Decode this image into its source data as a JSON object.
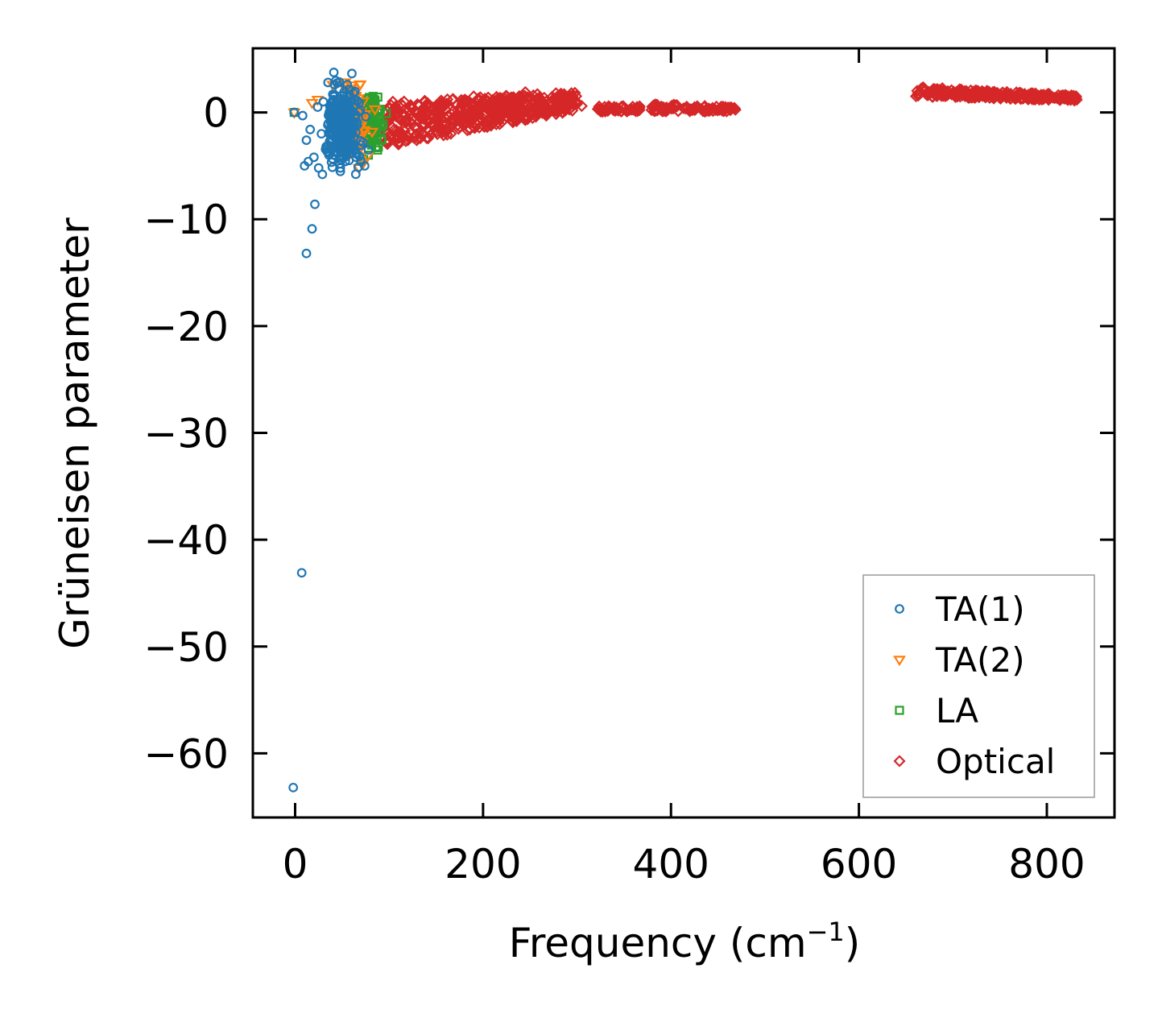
{
  "chart_data": {
    "type": "scatter",
    "title": "",
    "xlabel": "Frequency (cm",
    "xlabel_sup": "−1",
    "xlabel_close": ")",
    "ylabel": "Grüneisen parameter",
    "xlim": [
      -45,
      872
    ],
    "ylim": [
      -66,
      6
    ],
    "xticks": [
      0,
      200,
      400,
      600,
      800
    ],
    "xtick_labels": [
      "0",
      "200",
      "400",
      "600",
      "800"
    ],
    "yticks": [
      0,
      -10,
      -20,
      -30,
      -40,
      -50,
      -60
    ],
    "ytick_labels": [
      "0",
      "−10",
      "−20",
      "−30",
      "−40",
      "−50",
      "−60"
    ],
    "legend_position": "bottom-right",
    "series": [
      {
        "name": "TA(1)",
        "marker": "circle",
        "color": "#1f77b4",
        "points": [
          [
            -2,
            -63.2
          ],
          [
            7,
            -43.1
          ],
          [
            12,
            -13.2
          ],
          [
            18,
            -10.9
          ],
          [
            21,
            -8.6
          ],
          [
            10,
            -5.0
          ],
          [
            14,
            -4.6
          ],
          [
            20,
            -4.2
          ],
          [
            25,
            -5.2
          ],
          [
            29,
            -5.8
          ],
          [
            12,
            -2.6
          ],
          [
            16,
            -1.6
          ],
          [
            8,
            -0.3
          ],
          [
            -1,
            0.0
          ],
          [
            35,
            2.8
          ],
          [
            42,
            2.6
          ],
          [
            47,
            2.2
          ],
          [
            52,
            1.9
          ],
          [
            58,
            1.5
          ],
          [
            62,
            1.8
          ],
          [
            30,
            1.0
          ],
          [
            24,
            0.5
          ],
          [
            40,
            -0.8
          ],
          [
            45,
            -1.5
          ],
          [
            50,
            -2.2
          ],
          [
            55,
            -3.0
          ],
          [
            60,
            -3.8
          ],
          [
            65,
            -4.2
          ],
          [
            70,
            -4.6
          ],
          [
            74,
            -5.0
          ],
          [
            38,
            -2.5
          ],
          [
            33,
            -3.2
          ],
          [
            44,
            0.6
          ],
          [
            56,
            0.2
          ],
          [
            66,
            -1.2
          ],
          [
            72,
            -2.8
          ],
          [
            78,
            -3.5
          ],
          [
            48,
            -4.4
          ],
          [
            36,
            -4.0
          ],
          [
            28,
            -2.0
          ],
          [
            53,
            -0.5
          ],
          [
            61,
            -1.9
          ],
          [
            46,
            1.2
          ],
          [
            68,
            0.9
          ],
          [
            75,
            -0.4
          ]
        ],
        "clusters": [
          {
            "x_center": 50,
            "y_center": -1.2,
            "x_spread": 24,
            "y_spread": 5.5,
            "count": 260
          }
        ]
      },
      {
        "name": "TA(2)",
        "marker": "triangle-down",
        "color": "#ff7f0e",
        "points": [
          [
            -1,
            0.0
          ],
          [
            40,
            2.6
          ],
          [
            53,
            2.5
          ],
          [
            68,
            -5.2
          ],
          [
            72,
            -4.8
          ],
          [
            77,
            -4.1
          ],
          [
            82,
            -1.8
          ],
          [
            85,
            0.3
          ],
          [
            64,
            1.4
          ],
          [
            58,
            -3.9
          ],
          [
            18,
            0.9
          ],
          [
            24,
            1.2
          ]
        ],
        "clusters": [
          {
            "x_center": 58,
            "y_center": -0.8,
            "x_spread": 26,
            "y_spread": 4.5,
            "count": 110
          }
        ]
      },
      {
        "name": "LA",
        "marker": "square",
        "color": "#2ca02c",
        "points": [
          [
            -1,
            0.0
          ],
          [
            73,
            -4.4
          ],
          [
            78,
            -4.0
          ],
          [
            83,
            1.5
          ],
          [
            88,
            -0.9
          ],
          [
            92,
            -2.6
          ],
          [
            97,
            -0.1
          ],
          [
            86,
            -3.3
          ],
          [
            80,
            0.6
          ]
        ],
        "clusters": [
          {
            "x_center": 82,
            "y_center": -1.0,
            "x_spread": 16,
            "y_spread": 3.5,
            "count": 90
          }
        ]
      },
      {
        "name": "Optical",
        "marker": "diamond",
        "color": "#d62728",
        "points": [
          [
            100,
            0.5
          ],
          [
            120,
            -2.6
          ],
          [
            140,
            -2.4
          ],
          [
            160,
            -1.6
          ],
          [
            180,
            -0.9
          ],
          [
            200,
            0.9
          ],
          [
            220,
            1.3
          ],
          [
            245,
            1.9
          ],
          [
            260,
            1.4
          ],
          [
            280,
            1.1
          ],
          [
            300,
            0.8
          ],
          [
            305,
            0.6
          ],
          [
            110,
            -3.0
          ],
          [
            150,
            0.6
          ],
          [
            190,
            1.5
          ]
        ],
        "clusters": [
          {
            "x_start": 95,
            "x_end": 300,
            "y_top_start": 1.0,
            "y_top_end": 1.9,
            "y_bottom_start": -3.2,
            "y_bottom_end": 0.2,
            "count": 520
          },
          {
            "x_start": 322,
            "x_end": 368,
            "y_top_start": 0.6,
            "y_top_end": 0.6,
            "y_bottom_start": 0.0,
            "y_bottom_end": 0.1,
            "count": 55
          },
          {
            "x_start": 378,
            "x_end": 470,
            "y_top_start": 0.8,
            "y_top_end": 0.5,
            "y_bottom_start": 0.1,
            "y_bottom_end": 0.1,
            "count": 90
          },
          {
            "x_start": 660,
            "x_end": 832,
            "y_top_start": 2.4,
            "y_top_end": 1.6,
            "y_bottom_start": 1.5,
            "y_bottom_end": 1.1,
            "count": 260
          }
        ]
      }
    ]
  }
}
